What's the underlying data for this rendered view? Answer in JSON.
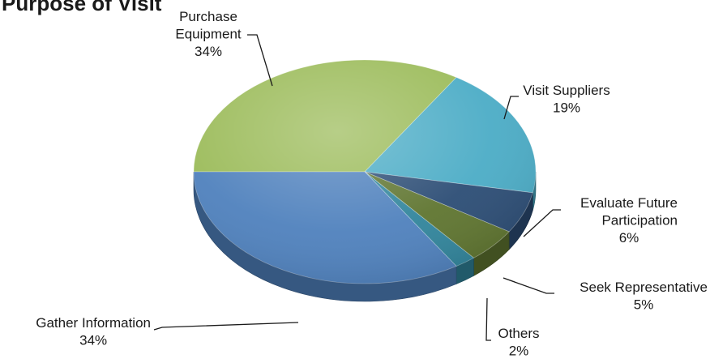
{
  "chart_data": {
    "type": "pie",
    "title": "Purpose of Visit",
    "categories": [
      "Purchase Equipment",
      "Visit Suppliers",
      "Evaluate Future Participation",
      "Seek Representative",
      "Others",
      "Gather Information"
    ],
    "labels": [
      [
        "Purchase",
        "Equipment"
      ],
      [
        "Visit Suppliers"
      ],
      [
        "Evaluate Future",
        "Participation"
      ],
      [
        "Seek Representative"
      ],
      [
        "Others"
      ],
      [
        "Gather Information"
      ]
    ],
    "values": [
      34,
      19,
      6,
      5,
      2,
      34
    ],
    "value_labels": [
      "34%",
      "19%",
      "6%",
      "5%",
      "2%",
      "34%"
    ],
    "unit": "%",
    "legend": "none",
    "style": "3d-pie",
    "colors": [
      "#9bbb59",
      "#4bacc6",
      "#2c4d75",
      "#5f7530",
      "#31859c",
      "#4f81bd"
    ]
  }
}
